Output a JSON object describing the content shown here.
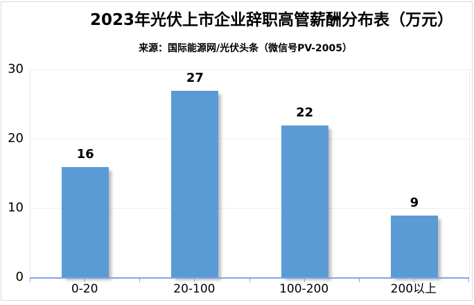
{
  "chart_data": {
    "type": "bar",
    "title": "2023年光伏上市企业辞职高管薪酬分布表（万元）",
    "subtitle": "来源：国际能源网/光伏头条（微信号PV-2005）",
    "categories": [
      "0-20",
      "20-100",
      "100-200",
      "200以上"
    ],
    "values": [
      16,
      27,
      22,
      9
    ],
    "data_labels_shown": true,
    "xlabel": "",
    "ylabel": "",
    "ylim": [
      0,
      30
    ],
    "y_ticks": [
      0,
      10,
      20,
      30
    ],
    "grid": true,
    "legend_position": "none",
    "colors": {
      "bar": "#5b9bd5",
      "axis_line": "#7ea6dc",
      "gridline": "#efefef",
      "frame_border": "#d9d9d9",
      "text": "#000000"
    }
  }
}
